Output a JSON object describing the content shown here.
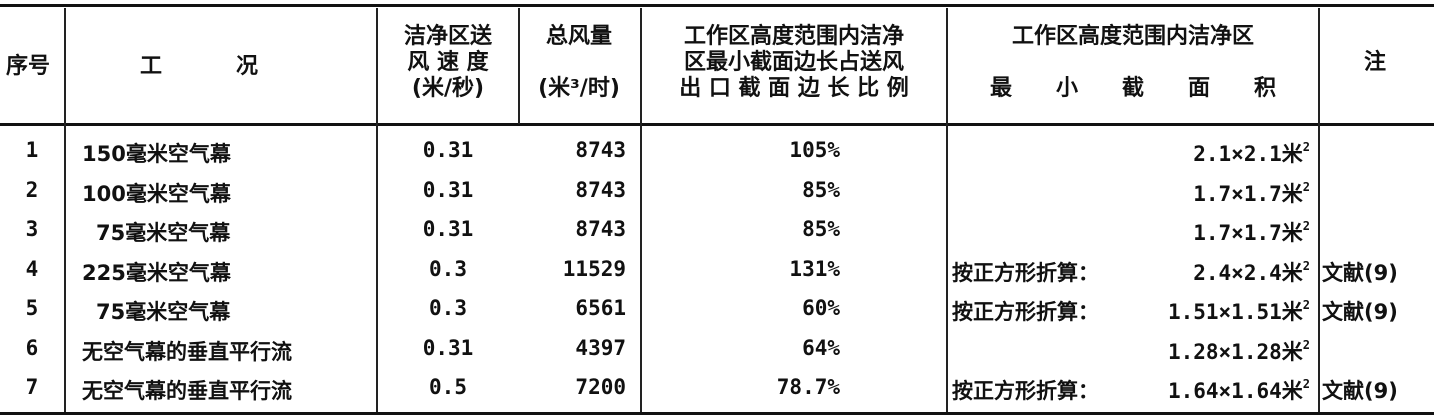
{
  "headers": {
    "index": "序号",
    "condition": "工　　　况",
    "velocity": [
      "洁净区送",
      "风 速 度",
      "(米/秒)"
    ],
    "airflow": [
      "总风量",
      "(米³/时)"
    ],
    "ratio": [
      "工作区高度范围内洁净",
      "区最小截面边长占送风",
      "出 口 截 面 边 长 比 例"
    ],
    "area": [
      "工作区高度范围内洁净区",
      "最　　小　　截　　面　　积"
    ],
    "note": "注"
  },
  "rows": [
    {
      "no": "1",
      "condition": "150毫米空气幕",
      "velocity": "0.31",
      "airflow": "8743",
      "ratio": "105%",
      "area_prefix": "",
      "area": "2.1×2.1米",
      "note": ""
    },
    {
      "no": "2",
      "condition": "100毫米空气幕",
      "velocity": "0.31",
      "airflow": "8743",
      "ratio": "85%",
      "area_prefix": "",
      "area": "1.7×1.7米",
      "note": ""
    },
    {
      "no": "3",
      "condition": "75毫米空气幕",
      "velocity": "0.31",
      "airflow": "8743",
      "ratio": "85%",
      "area_prefix": "",
      "area": "1.7×1.7米",
      "note": ""
    },
    {
      "no": "4",
      "condition": "225毫米空气幕",
      "velocity": "0.3",
      "airflow": "11529",
      "ratio": "131%",
      "area_prefix": "按正方形折算：",
      "area": "2.4×2.4米",
      "note": "文献(9)"
    },
    {
      "no": "5",
      "condition": "75毫米空气幕",
      "velocity": "0.3",
      "airflow": "6561",
      "ratio": "60%",
      "area_prefix": "按正方形折算：",
      "area": "1.51×1.51米",
      "note": "文献(9)"
    },
    {
      "no": "6",
      "condition": "无空气幕的垂直平行流",
      "velocity": "0.31",
      "airflow": "4397",
      "ratio": "64%",
      "area_prefix": "",
      "area": "1.28×1.28米",
      "note": ""
    },
    {
      "no": "7",
      "condition": "无空气幕的垂直平行流",
      "velocity": "0.5",
      "airflow": "7200",
      "ratio": "78.7%",
      "area_prefix": "按正方形折算：",
      "area": "1.64×1.64米",
      "note": "文献(9)"
    }
  ],
  "superscript": "2"
}
